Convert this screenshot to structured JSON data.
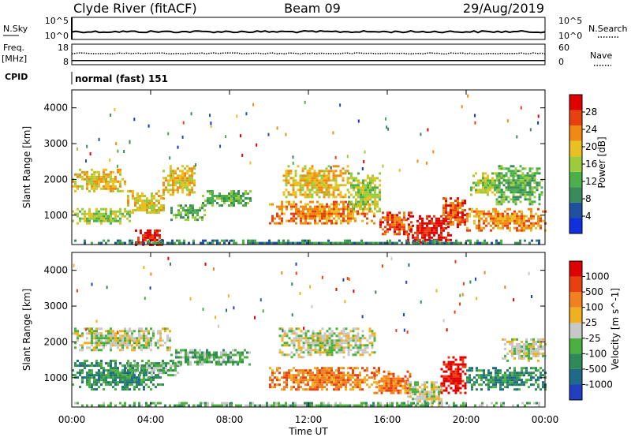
{
  "header": {
    "station": "Clyde River (fitACF)",
    "beam": "Beam 09",
    "date": "29/Aug/2019"
  },
  "status_panels": {
    "nsky": {
      "left_label": "N.Sky",
      "left_ticks": [
        "10^5",
        "10^0"
      ],
      "right_ticks": [
        "10^5",
        "10^0"
      ],
      "right_label": "N.Search",
      "level": 0.35
    },
    "freq": {
      "left_label_1": "Freq.",
      "left_label_2": "[MHz]",
      "left_ticks": [
        "18",
        "8"
      ],
      "right_ticks": [
        "60",
        "0"
      ],
      "right_label": "Nave",
      "solid_level": 0.2,
      "dotted_level": 0.55
    },
    "cpid": {
      "label": "CPID",
      "text": "normal (fast) 151"
    }
  },
  "x_axis": {
    "label": "Time UT",
    "ticks": [
      "00:00",
      "04:00",
      "08:00",
      "12:00",
      "16:00",
      "20:00",
      "00:00"
    ],
    "tick_hours": [
      0,
      4,
      8,
      12,
      16,
      20,
      24
    ]
  },
  "colors": {
    "power": [
      "#1030e0",
      "#2050a0",
      "#3a8a5a",
      "#4bb04b",
      "#9ccc3c",
      "#e8c020",
      "#f08a10",
      "#e84010",
      "#e00000"
    ],
    "velocity": [
      "#2040c0",
      "#1f6a8a",
      "#2f8a5a",
      "#4cb040",
      "#c8c8c8",
      "#f0b020",
      "#f08020",
      "#e84010",
      "#e00000"
    ]
  },
  "chart_data": [
    {
      "type": "heatmap",
      "title": "",
      "xlabel": "Time UT",
      "ylabel": "Slant Range [km]",
      "xlim": [
        0,
        24
      ],
      "ylim": [
        180,
        4500
      ],
      "yticks": [
        1000,
        2000,
        3000,
        4000
      ],
      "colorbar": {
        "label": "Power [dB]",
        "ticks": [
          "28",
          "24",
          "20",
          "16",
          "12",
          "8",
          "4"
        ],
        "range": [
          0,
          32
        ]
      },
      "regions": [
        {
          "t": [
            0.0,
            2.7
          ],
          "r": [
            1700,
            2300
          ],
          "level": 5
        },
        {
          "t": [
            0.0,
            3.0
          ],
          "r": [
            800,
            1200
          ],
          "level": 4
        },
        {
          "t": [
            2.8,
            4.7
          ],
          "r": [
            1050,
            1700
          ],
          "level": 5
        },
        {
          "t": [
            3.2,
            4.6
          ],
          "r": [
            200,
            600
          ],
          "level": 8
        },
        {
          "t": [
            4.6,
            6.2
          ],
          "r": [
            1600,
            2400
          ],
          "level": 5
        },
        {
          "t": [
            5.0,
            6.8
          ],
          "r": [
            900,
            1300
          ],
          "level": 3
        },
        {
          "t": [
            6.6,
            9.2
          ],
          "r": [
            1300,
            1700
          ],
          "level": 3
        },
        {
          "t": [
            10.7,
            14.0
          ],
          "r": [
            1500,
            2400
          ],
          "level": 5
        },
        {
          "t": [
            10.0,
            15.3
          ],
          "r": [
            800,
            1400
          ],
          "level": 6
        },
        {
          "t": [
            14.0,
            15.6
          ],
          "r": [
            1100,
            2200
          ],
          "level": 4
        },
        {
          "t": [
            15.6,
            17.2
          ],
          "r": [
            500,
            1100
          ],
          "level": 7
        },
        {
          "t": [
            17.0,
            19.2
          ],
          "r": [
            220,
            1000
          ],
          "level": 8
        },
        {
          "t": [
            18.8,
            20.0
          ],
          "r": [
            700,
            1500
          ],
          "level": 7
        },
        {
          "t": [
            20.2,
            21.8
          ],
          "r": [
            1600,
            2200
          ],
          "level": 4
        },
        {
          "t": [
            20.0,
            24.0
          ],
          "r": [
            600,
            1200
          ],
          "level": 6
        },
        {
          "t": [
            21.5,
            23.8
          ],
          "r": [
            1300,
            2400
          ],
          "level": 3
        },
        {
          "t": [
            0.0,
            24.0
          ],
          "r": [
            200,
            320
          ],
          "level": 2
        }
      ]
    },
    {
      "type": "heatmap",
      "title": "",
      "xlabel": "Time UT",
      "ylabel": "Slant Range [km]",
      "xlim": [
        0,
        24
      ],
      "ylim": [
        180,
        4500
      ],
      "yticks": [
        1000,
        2000,
        3000,
        4000
      ],
      "colorbar": {
        "label": "Velocity [m s^-1]",
        "ticks": [
          "1000",
          "500",
          "100",
          "25",
          "-25",
          "-100",
          "-500",
          "-1000"
        ],
        "range": [
          -1500,
          1500
        ]
      },
      "regions": [
        {
          "t": [
            0.0,
            5.0
          ],
          "r": [
            1800,
            2400
          ],
          "level": 4
        },
        {
          "t": [
            0.0,
            4.6
          ],
          "r": [
            700,
            1500
          ],
          "level": 2
        },
        {
          "t": [
            2.8,
            5.5
          ],
          "r": [
            1100,
            1500
          ],
          "level": 3
        },
        {
          "t": [
            5.0,
            9.0
          ],
          "r": [
            1400,
            1800
          ],
          "level": 3
        },
        {
          "t": [
            10.5,
            15.3
          ],
          "r": [
            1600,
            2400
          ],
          "level": 4
        },
        {
          "t": [
            10.0,
            15.6
          ],
          "r": [
            700,
            1300
          ],
          "level": 6
        },
        {
          "t": [
            15.3,
            17.2
          ],
          "r": [
            600,
            1200
          ],
          "level": 6
        },
        {
          "t": [
            17.0,
            18.8
          ],
          "r": [
            220,
            900
          ],
          "level": 4
        },
        {
          "t": [
            18.7,
            20.0
          ],
          "r": [
            600,
            1600
          ],
          "level": 8
        },
        {
          "t": [
            20.0,
            24.0
          ],
          "r": [
            700,
            1300
          ],
          "level": 2
        },
        {
          "t": [
            21.8,
            24.0
          ],
          "r": [
            1500,
            2100
          ],
          "level": 4
        },
        {
          "t": [
            0.0,
            24.0
          ],
          "r": [
            200,
            320
          ],
          "level": 3
        }
      ]
    }
  ]
}
